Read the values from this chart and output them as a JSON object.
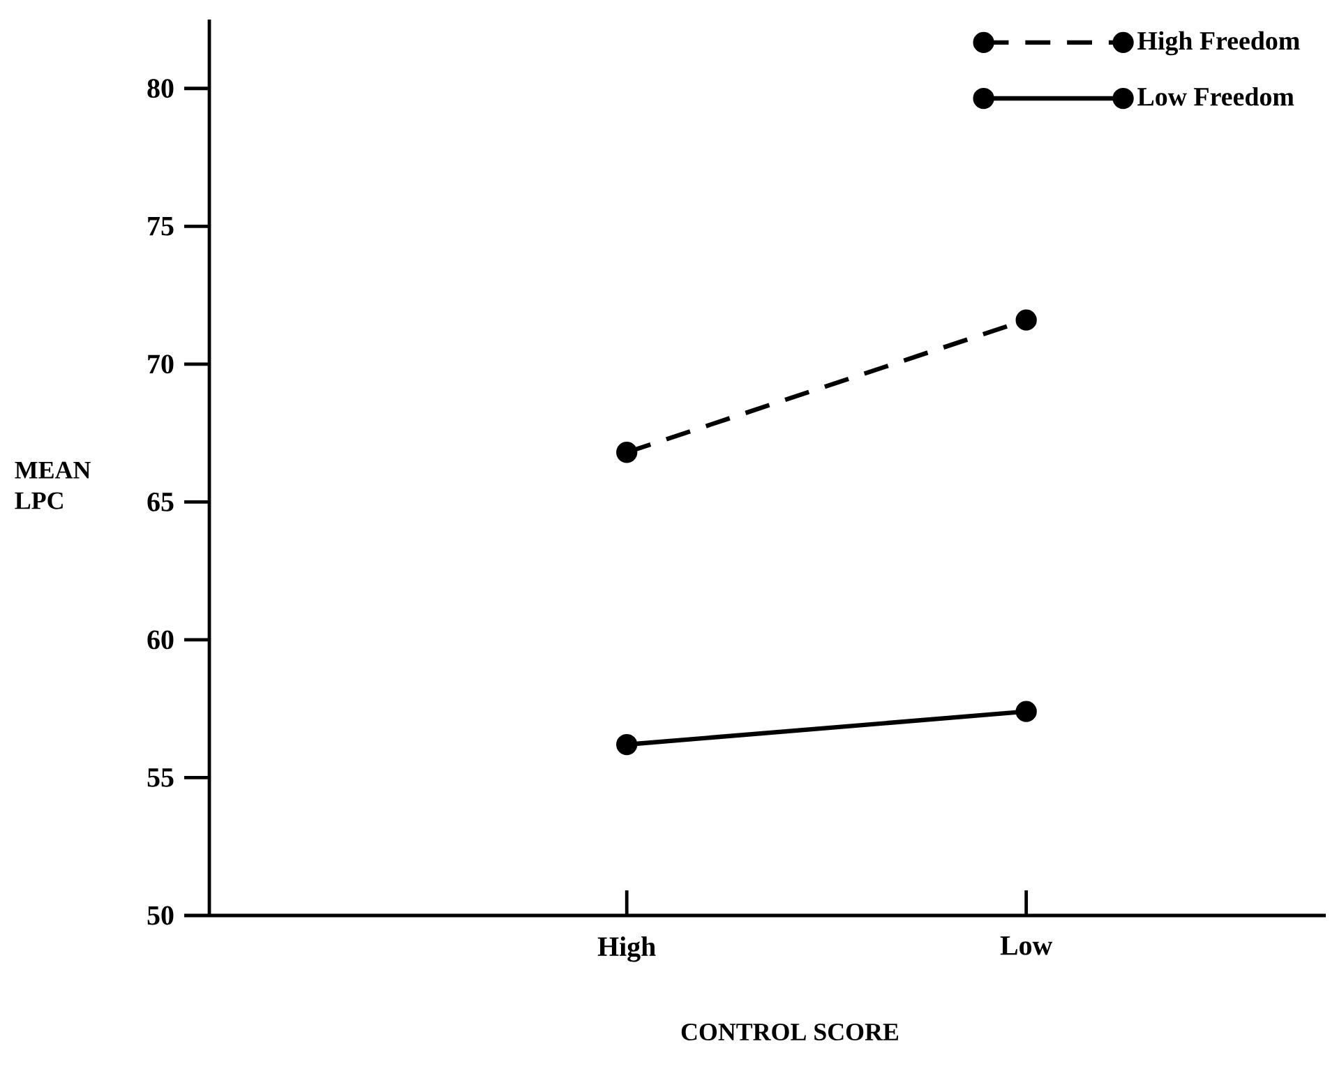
{
  "chart_data": {
    "type": "line",
    "xlabel": "CONTROL SCORE",
    "ylabel": "MEAN LPC",
    "categories": [
      "High",
      "Low"
    ],
    "series": [
      {
        "name": "High Freedom",
        "color": "#000000",
        "line_style": "dashed",
        "values": [
          66.8,
          71.6
        ]
      },
      {
        "name": "Low Freedom",
        "color": "#000000",
        "line_style": "solid",
        "values": [
          56.2,
          57.4
        ]
      }
    ],
    "ylim": [
      50,
      82.5
    ],
    "yticks": [
      50,
      55,
      60,
      65,
      70,
      75,
      80
    ],
    "marker": "circle",
    "legend": "top right"
  }
}
